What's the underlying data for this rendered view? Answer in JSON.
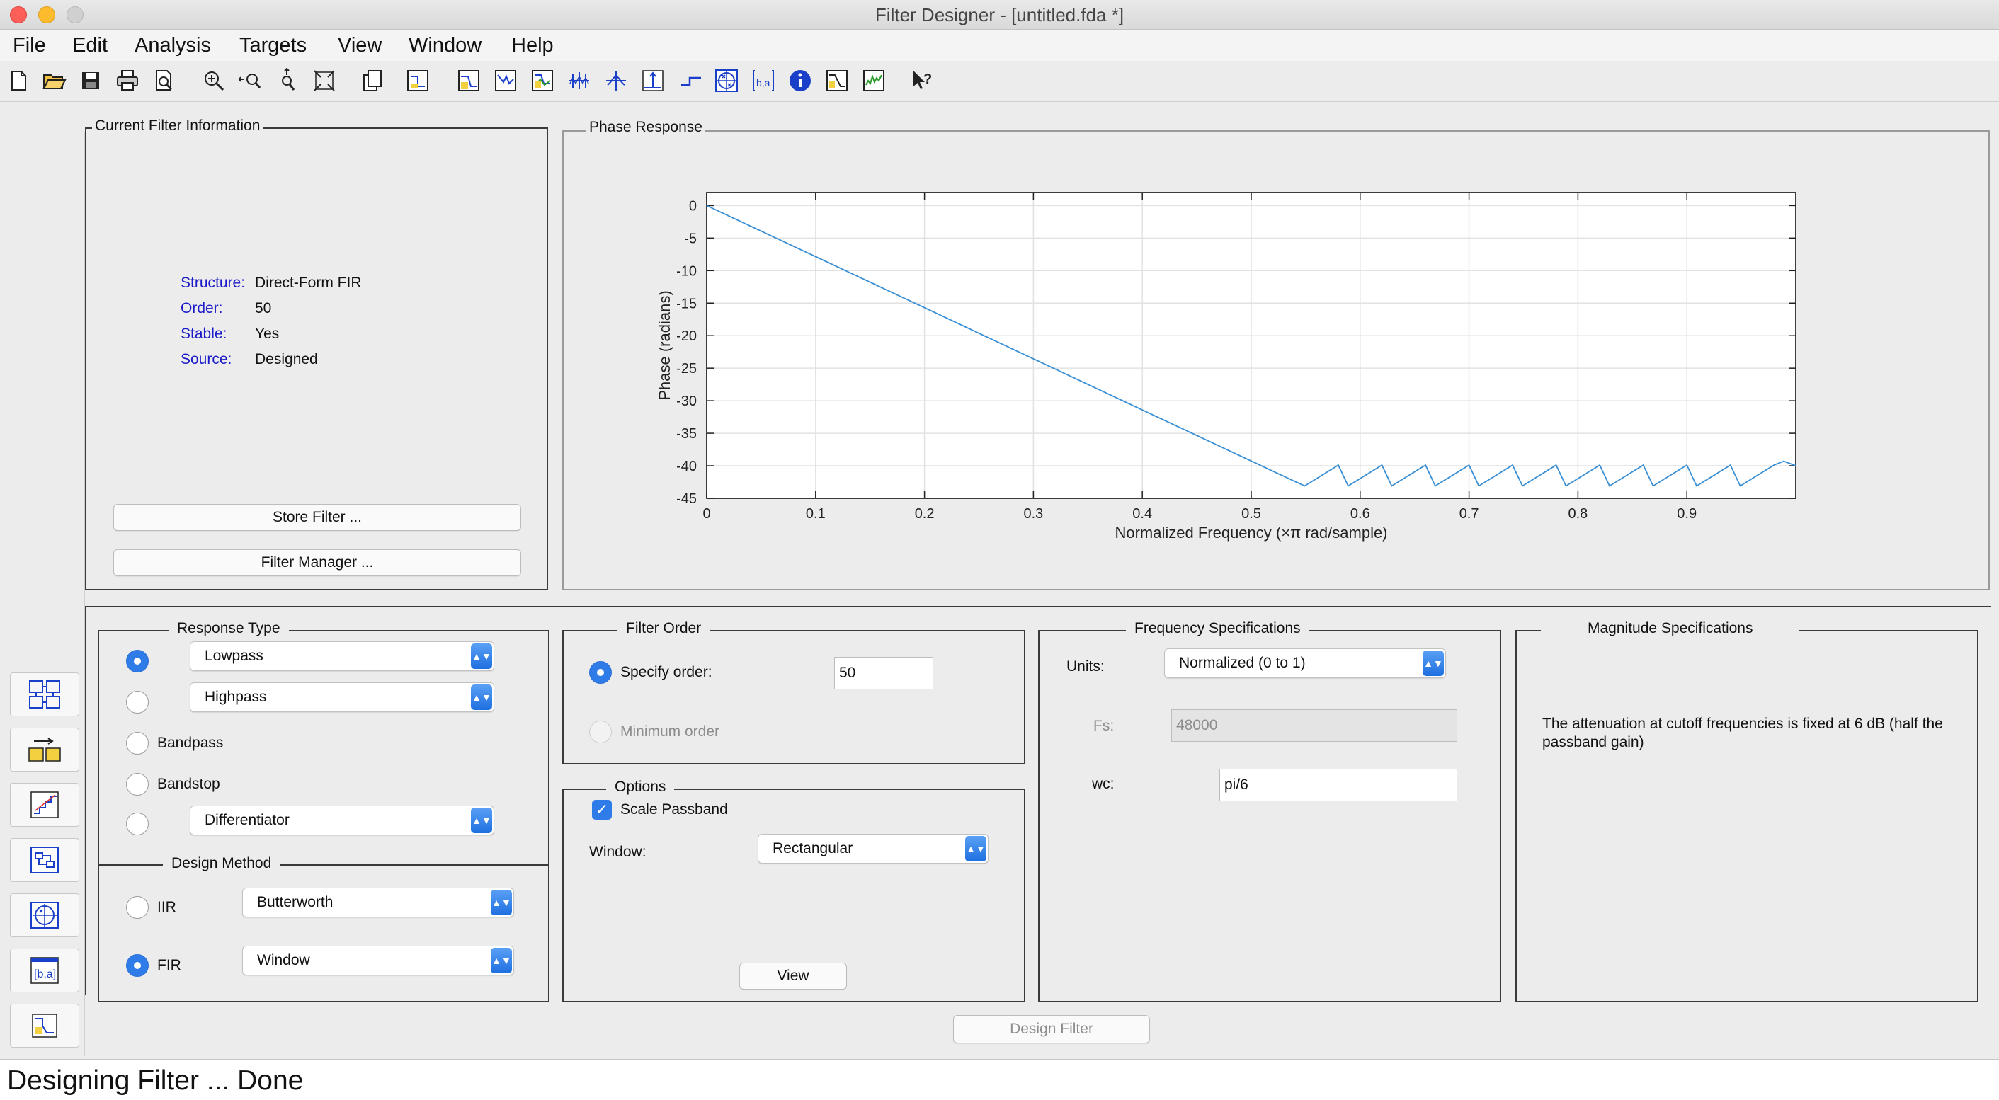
{
  "window": {
    "title": "Filter Designer -  [untitled.fda *]"
  },
  "menu": [
    "File",
    "Edit",
    "Analysis",
    "Targets",
    "View",
    "Window",
    "Help"
  ],
  "toolbar": {
    "icons": [
      "new-icon",
      "open-icon",
      "save-icon",
      "print-icon",
      "print-preview-icon",
      "zoom-in-icon",
      "zoom-x-icon",
      "zoom-y-icon",
      "full-view-icon",
      "new-figure-icon",
      "filter-specs-icon",
      "magnitude-response-icon",
      "phase-response-icon",
      "magnitude-phase-icon",
      "group-delay-icon",
      "phase-delay-icon",
      "impulse-response-icon",
      "step-response-icon",
      "pole-zero-icon",
      "filter-coefficients-icon",
      "filter-info-icon",
      "magnitude-estimate-icon",
      "round-off-noise-icon",
      "whats-this-icon"
    ]
  },
  "current_filter": {
    "title": "Current Filter Information",
    "structure_label": "Structure:",
    "structure_value": "Direct-Form FIR",
    "order_label": "Order:",
    "order_value": "50",
    "stable_label": "Stable:",
    "stable_value": "Yes",
    "source_label": "Source:",
    "source_value": "Designed",
    "store_button": "Store Filter ...",
    "manager_button": "Filter Manager ..."
  },
  "phase_panel": {
    "title": "Phase Response"
  },
  "chart_data": {
    "type": "line",
    "title": "",
    "xlabel": "Normalized Frequency  (×π rad/sample)",
    "ylabel": "Phase (radians)",
    "xlim": [
      0,
      1
    ],
    "ylim": [
      -45,
      2
    ],
    "xticks": [
      "0",
      "0.1",
      "0.2",
      "0.3",
      "0.4",
      "0.5",
      "0.6",
      "0.7",
      "0.8",
      "0.9"
    ],
    "yticks": [
      "0",
      "-5",
      "-10",
      "-15",
      "-20",
      "-25",
      "-30",
      "-35",
      "-40",
      "-45"
    ],
    "grid": true,
    "series": [
      {
        "x": [
          0,
          0.1,
          0.2,
          0.3,
          0.4,
          0.5,
          0.54,
          0.549,
          0.58,
          0.589,
          0.62,
          0.629,
          0.66,
          0.669,
          0.7,
          0.709,
          0.74,
          0.749,
          0.78,
          0.789,
          0.82,
          0.829,
          0.86,
          0.869,
          0.9,
          0.909,
          0.94,
          0.949,
          0.98,
          0.989,
          1.0
        ],
        "y": [
          0,
          -7.85,
          -15.7,
          -23.56,
          -31.42,
          -39.27,
          -42.4,
          -43.1,
          -39.9,
          -43.1,
          -39.9,
          -43.1,
          -39.9,
          -43.1,
          -39.9,
          -43.1,
          -39.9,
          -43.1,
          -39.9,
          -43.1,
          -39.9,
          -43.1,
          -39.9,
          -43.1,
          -39.9,
          -43.1,
          -39.9,
          -43.1,
          -39.9,
          -39.3,
          -40.0
        ]
      }
    ],
    "color": "#3a8fd4"
  },
  "response_type": {
    "title": "Response Type",
    "lowpass": "Lowpass",
    "highpass": "Highpass",
    "bandpass": "Bandpass",
    "bandstop": "Bandstop",
    "differentiator": "Differentiator"
  },
  "design_method": {
    "title": "Design Method",
    "iir_label": "IIR",
    "iir_value": "Butterworth",
    "fir_label": "FIR",
    "fir_value": "Window"
  },
  "filter_order": {
    "title": "Filter Order",
    "specify_label": "Specify order:",
    "order_value": "50",
    "minimum_label": "Minimum order"
  },
  "options": {
    "title": "Options",
    "scale_label": "Scale Passband",
    "window_label": "Window:",
    "window_value": "Rectangular",
    "view_button": "View"
  },
  "freq_specs": {
    "title": "Frequency Specifications",
    "units_label": "Units:",
    "units_value": "Normalized (0 to 1)",
    "fs_label": "Fs:",
    "fs_value": "48000",
    "wc_label": "wc:",
    "wc_value": "pi/6"
  },
  "mag_specs": {
    "title": "Magnitude Specifications",
    "note": "The attenuation at cutoff frequencies is fixed at 6 dB (half the passband gain)"
  },
  "design_button": "Design Filter",
  "status": "Designing Filter ... Done",
  "colors": {
    "accent": "#2f7be8",
    "plot_line": "#3a8fd4",
    "info_key": "#1a1ac8"
  }
}
